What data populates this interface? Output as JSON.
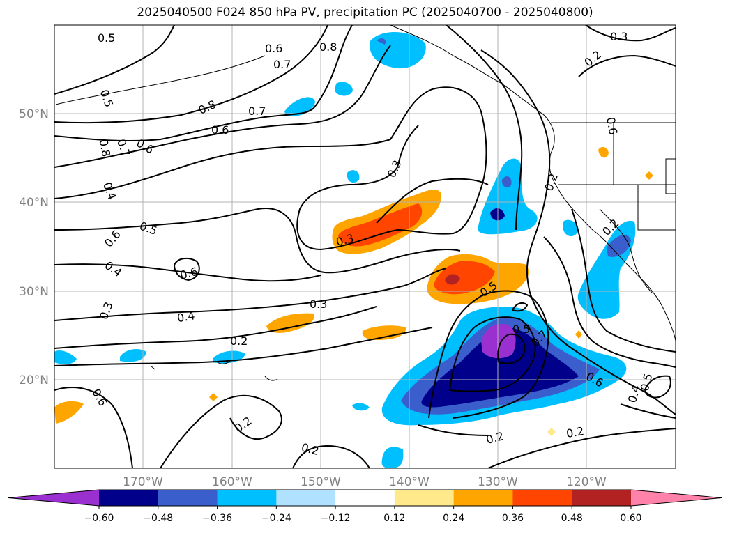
{
  "title": "2025040500 F024 850 hPa PV, precipitation PC (2025040700 - 2025040800)",
  "map": {
    "lat_labels": [
      "50°N",
      "40°N",
      "30°N",
      "20°N"
    ],
    "lon_labels": [
      "170°W",
      "160°W",
      "150°W",
      "140°W",
      "130°W",
      "120°W"
    ]
  },
  "contour_labels": [
    "0.5",
    "0.6",
    "0.8",
    "0.7",
    "0.3",
    "0.2",
    "0.8",
    "0.7",
    "0.6",
    "0.5",
    "0.7",
    "0.6",
    "0.8",
    "0.4",
    "0.3",
    "0.2",
    "0.5",
    "0.6",
    "0.4",
    "0.6",
    "0.3",
    "0.2",
    "0.6",
    "0.3",
    "0.5",
    "0.4",
    "0.3",
    "0.2",
    "0.5",
    "0.7",
    "0.6",
    "0.4",
    "0.5",
    "0.6",
    "0.2",
    "0.2",
    "0.2",
    "0.2",
    "0.2"
  ],
  "colorbar": {
    "ticks": [
      "−0.60",
      "−0.48",
      "−0.36",
      "−0.24",
      "−0.12",
      "0.12",
      "0.24",
      "0.36",
      "0.48",
      "0.60"
    ],
    "colors": [
      "#9b30d0",
      "#00008b",
      "#3a5fcd",
      "#00bfff",
      "#b0e2ff",
      "#ffffff",
      "#ffe98a",
      "#ffa500",
      "#ff4500",
      "#b22222",
      "#ff82ab"
    ]
  }
}
